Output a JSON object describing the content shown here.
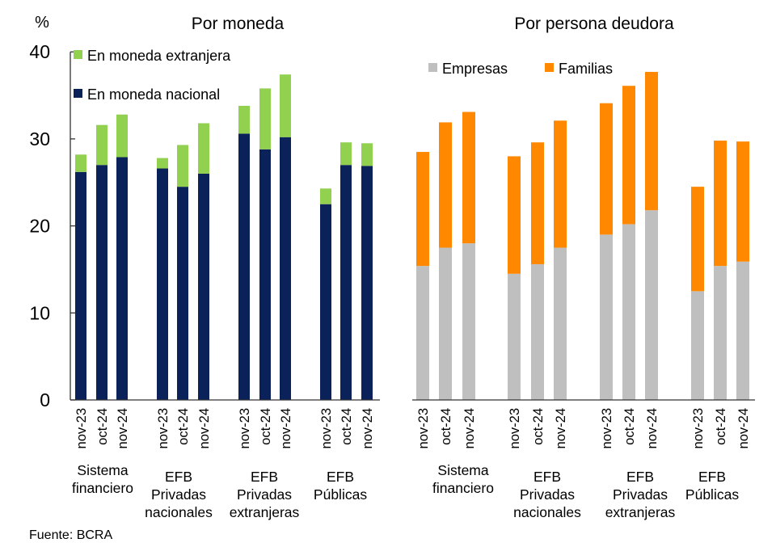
{
  "unit_label": "%",
  "source": "Fuente: BCRA",
  "colors": {
    "foreign_currency": "#92D050",
    "domestic_currency": "#0A2159",
    "companies": "#BFBFBF",
    "households": "#FF8800"
  },
  "chart_data": [
    {
      "type": "bar",
      "stacked": true,
      "title": "Por moneda",
      "ylabel": "%",
      "ylim": [
        0,
        40
      ],
      "yticks": [
        0,
        10,
        20,
        30,
        40
      ],
      "grid": false,
      "legend_position": "top-left",
      "groups": [
        "Sistema financiero",
        "EFB Privadas nacionales",
        "EFB Privadas extranjeras",
        "EFB Públicas"
      ],
      "group_label_lines": [
        [
          "Sistema",
          "financiero"
        ],
        [
          "EFB",
          "Privadas",
          "nacionales"
        ],
        [
          "EFB",
          "Privadas",
          "extranjeras"
        ],
        [
          "EFB",
          "Públicas"
        ]
      ],
      "categories": [
        "nov-23",
        "oct-24",
        "nov-24"
      ],
      "series": [
        {
          "name": "En moneda nacional",
          "color": "#0A2159",
          "values": [
            [
              26.2,
              27.0,
              27.9
            ],
            [
              26.6,
              24.5,
              26.0
            ],
            [
              30.6,
              28.8,
              30.2
            ],
            [
              22.5,
              27.0,
              26.9
            ]
          ]
        },
        {
          "name": "En moneda extranjera",
          "color": "#92D050",
          "values": [
            [
              2.0,
              4.6,
              4.9
            ],
            [
              1.2,
              4.8,
              5.8
            ],
            [
              3.2,
              7.0,
              7.2
            ],
            [
              1.8,
              2.6,
              2.6
            ]
          ]
        }
      ],
      "legend": [
        "En moneda extranjera",
        "En moneda nacional"
      ]
    },
    {
      "type": "bar",
      "stacked": true,
      "title": "Por persona deudora",
      "ylabel": "",
      "ylim": [
        0,
        40
      ],
      "grid": false,
      "legend_position": "top",
      "groups": [
        "Sistema financiero",
        "EFB Privadas nacionales",
        "EFB Privadas extranjeras",
        "EFB Públicas"
      ],
      "group_label_lines": [
        [
          "Sistema",
          "financiero"
        ],
        [
          "EFB",
          "Privadas",
          "nacionales"
        ],
        [
          "EFB",
          "Privadas",
          "extranjeras"
        ],
        [
          "EFB",
          "Públicas"
        ]
      ],
      "categories": [
        "nov-23",
        "oct-24",
        "nov-24"
      ],
      "series": [
        {
          "name": "Empresas",
          "color": "#BFBFBF",
          "values": [
            [
              15.4,
              17.5,
              18.0
            ],
            [
              14.5,
              15.6,
              17.5
            ],
            [
              19.0,
              20.2,
              21.8
            ],
            [
              12.5,
              15.4,
              15.9
            ]
          ]
        },
        {
          "name": "Familias",
          "color": "#FF8800",
          "values": [
            [
              13.1,
              14.4,
              15.1
            ],
            [
              13.5,
              14.0,
              14.6
            ],
            [
              15.1,
              15.9,
              15.9
            ],
            [
              12.0,
              14.4,
              13.8
            ]
          ]
        }
      ],
      "legend": [
        "Empresas",
        "Familias"
      ]
    }
  ]
}
